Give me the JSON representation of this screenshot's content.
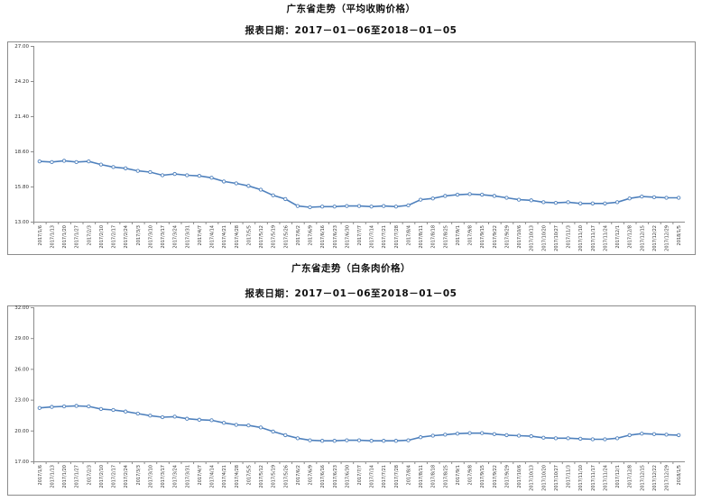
{
  "charts": [
    {
      "title": "广东省走势（平均收购价格）",
      "subtitle": "报表日期：2017－01－06至2018－01－05"
    },
    {
      "title": "广东省走势（白条肉价格）",
      "subtitle": "报表日期：2017－01－06至2018－01－05"
    }
  ],
  "chart_data": [
    {
      "type": "line",
      "title": "广东省走势（平均收购价格）",
      "subtitle": "报表日期：2017－01－06至2018－01－05",
      "x": [
        "2017/1/6",
        "2017/1/13",
        "2017/1/20",
        "2017/1/27",
        "2017/2/3",
        "2017/2/10",
        "2017/2/17",
        "2017/2/24",
        "2017/3/3",
        "2017/3/10",
        "2017/3/17",
        "2017/3/24",
        "2017/3/31",
        "2017/4/7",
        "2017/4/14",
        "2017/4/21",
        "2017/4/28",
        "2017/5/5",
        "2017/5/12",
        "2017/5/19",
        "2017/5/26",
        "2017/6/2",
        "2017/6/9",
        "2017/6/16",
        "2017/6/23",
        "2017/6/30",
        "2017/7/7",
        "2017/7/14",
        "2017/7/21",
        "2017/7/28",
        "2017/8/4",
        "2017/8/11",
        "2017/8/18",
        "2017/8/25",
        "2017/9/1",
        "2017/9/8",
        "2017/9/15",
        "2017/9/22",
        "2017/9/29",
        "2017/10/6",
        "2017/10/13",
        "2017/10/20",
        "2017/10/27",
        "2017/11/3",
        "2017/11/10",
        "2017/11/17",
        "2017/11/24",
        "2017/12/1",
        "2017/12/8",
        "2017/12/15",
        "2017/12/22",
        "2017/12/29",
        "2018/1/5"
      ],
      "series": [
        {
          "values": [
            17.8,
            17.75,
            17.85,
            17.75,
            17.8,
            17.55,
            17.35,
            17.25,
            17.05,
            16.95,
            16.7,
            16.8,
            16.7,
            16.65,
            16.5,
            16.2,
            16.05,
            15.85,
            15.55,
            15.1,
            14.8,
            14.25,
            14.15,
            14.2,
            14.2,
            14.25,
            14.25,
            14.2,
            14.25,
            14.2,
            14.3,
            14.75,
            14.85,
            15.05,
            15.15,
            15.2,
            15.15,
            15.05,
            14.9,
            14.75,
            14.7,
            14.55,
            14.5,
            14.55,
            14.45,
            14.45,
            14.45,
            14.55,
            14.85,
            15.0,
            14.95,
            14.9,
            14.9
          ]
        }
      ],
      "ylim": [
        13.0,
        27.0
      ],
      "yticks": [
        "13.00",
        "15.80",
        "18.60",
        "21.40",
        "24.20",
        "27.00"
      ],
      "color": "#4f81bd",
      "grid": false
    },
    {
      "type": "line",
      "title": "广东省走势（白条肉价格）",
      "subtitle": "报表日期：2017－01－06至2018－01－05",
      "x": [
        "2017/1/6",
        "2017/1/13",
        "2017/1/20",
        "2017/1/27",
        "2017/2/3",
        "2017/2/10",
        "2017/2/17",
        "2017/2/24",
        "2017/3/3",
        "2017/3/10",
        "2017/3/17",
        "2017/3/24",
        "2017/3/31",
        "2017/4/7",
        "2017/4/14",
        "2017/4/21",
        "2017/4/28",
        "2017/5/5",
        "2017/5/12",
        "2017/5/19",
        "2017/5/26",
        "2017/6/2",
        "2017/6/9",
        "2017/6/16",
        "2017/6/23",
        "2017/6/30",
        "2017/7/7",
        "2017/7/14",
        "2017/7/21",
        "2017/7/28",
        "2017/8/4",
        "2017/8/11",
        "2017/8/18",
        "2017/8/25",
        "2017/9/1",
        "2017/9/8",
        "2017/9/15",
        "2017/9/22",
        "2017/9/29",
        "2017/10/6",
        "2017/10/13",
        "2017/10/20",
        "2017/10/27",
        "2017/11/3",
        "2017/11/10",
        "2017/11/17",
        "2017/11/24",
        "2017/12/1",
        "2017/12/8",
        "2017/12/15",
        "2017/12/22",
        "2017/12/29",
        "2018/1/5"
      ],
      "series": [
        {
          "values": [
            22.2,
            22.3,
            22.35,
            22.4,
            22.35,
            22.1,
            22.0,
            21.85,
            21.65,
            21.45,
            21.3,
            21.35,
            21.15,
            21.05,
            21.0,
            20.75,
            20.55,
            20.5,
            20.3,
            19.9,
            19.55,
            19.25,
            19.05,
            19.0,
            19.0,
            19.05,
            19.05,
            19.0,
            19.0,
            19.0,
            19.05,
            19.35,
            19.5,
            19.6,
            19.7,
            19.75,
            19.75,
            19.65,
            19.55,
            19.5,
            19.45,
            19.3,
            19.25,
            19.25,
            19.2,
            19.15,
            19.15,
            19.25,
            19.55,
            19.7,
            19.65,
            19.6,
            19.55
          ]
        }
      ],
      "ylim": [
        17.0,
        32.0
      ],
      "yticks": [
        "17.00",
        "20.00",
        "23.00",
        "26.00",
        "29.00",
        "32.00"
      ],
      "color": "#4f81bd",
      "grid": false
    }
  ]
}
